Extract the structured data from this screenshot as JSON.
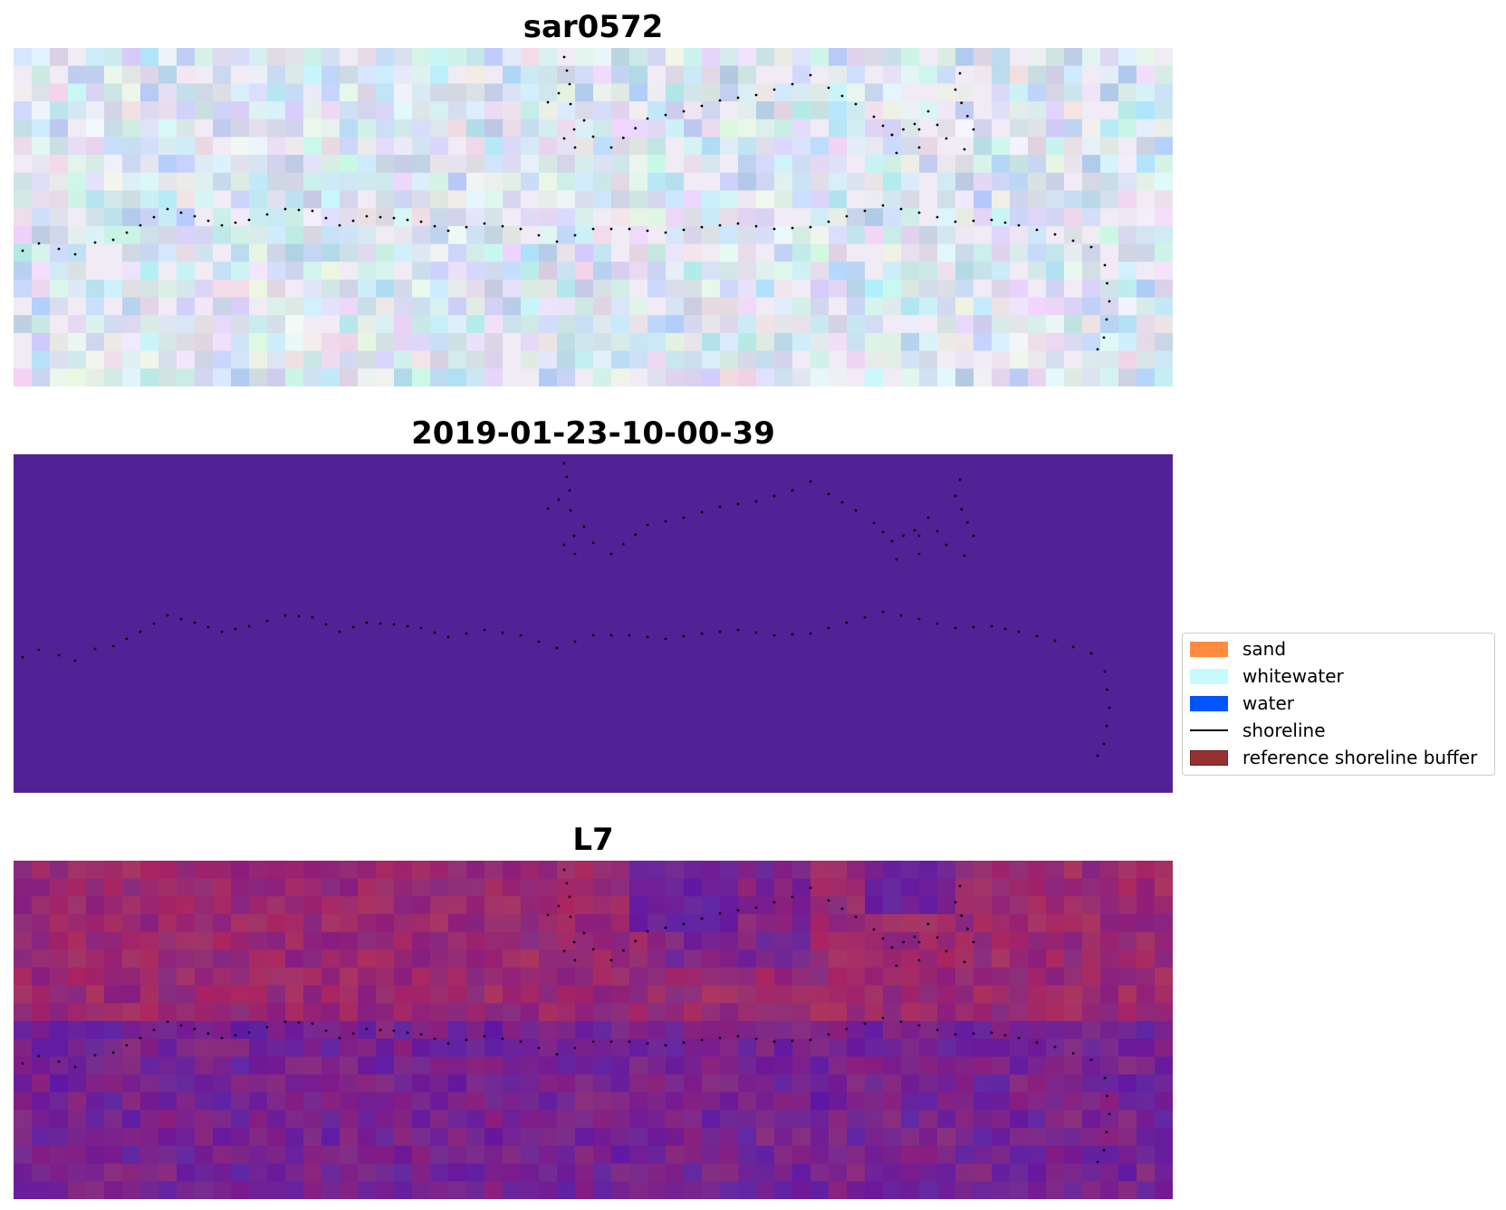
{
  "panels": [
    {
      "title": "sar0572",
      "image": "rgb-satellite-composite"
    },
    {
      "title": "2019-01-23-10-00-39",
      "image": "classified-map",
      "fill_color": "#512295"
    },
    {
      "title": "L7",
      "image": "index-map"
    }
  ],
  "legend": {
    "items": [
      {
        "label": "sand",
        "color": "#ff8c3f",
        "kind": "patch"
      },
      {
        "label": "whitewater",
        "color": "#c8fbfb",
        "kind": "patch"
      },
      {
        "label": "water",
        "color": "#0055ff",
        "kind": "patch"
      },
      {
        "label": "shoreline",
        "color": "#000000",
        "kind": "line"
      },
      {
        "label": "reference shoreline buffer",
        "color": "#963232",
        "kind": "patch"
      }
    ]
  },
  "colors": {
    "classified_background": "#512295",
    "shoreline_points": "#000000"
  }
}
